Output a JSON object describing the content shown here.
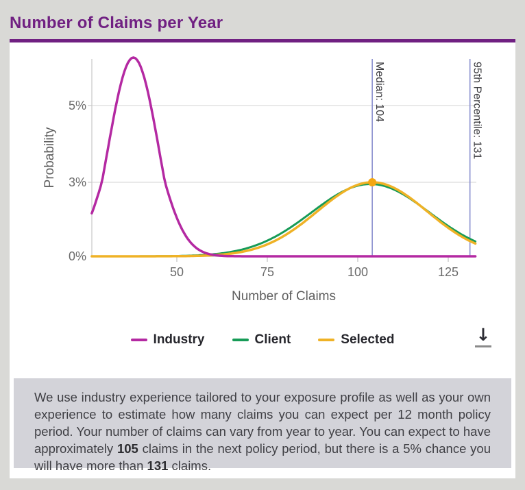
{
  "page": {
    "title": "Number of Claims per Year",
    "accent_color": "#702082"
  },
  "chart": {
    "y_axis": {
      "label": "Probability",
      "ticks": [
        "0%",
        "3%",
        "5%"
      ]
    },
    "x_axis": {
      "label": "Number of Claims",
      "ticks": [
        "50",
        "75",
        "100",
        "125"
      ]
    }
  },
  "chart_data": {
    "type": "line",
    "title": "Number of Claims per Year",
    "xlabel": "Number of Claims",
    "ylabel": "Probability",
    "x_ticks": [
      50,
      75,
      100,
      125
    ],
    "y_tick_labels": [
      "0%",
      "3%",
      "5%"
    ],
    "y_tick_pcts": [
      0,
      3,
      5
    ],
    "x_range": [
      26.5,
      132.9
    ],
    "grid": true,
    "legend_position": "bottom",
    "draw_order": [
      1,
      2,
      0
    ],
    "series": [
      {
        "name": "Industry",
        "color": "#b429a2",
        "shape": "gaussian",
        "mean": 38,
        "sd": 7.2,
        "peak_pct": 6.25,
        "key_points": [
          [
            27,
            1.8
          ],
          [
            38,
            6.25
          ],
          [
            47,
            2.9
          ],
          [
            57,
            0.2
          ],
          [
            65,
            0.0
          ],
          [
            133,
            0.0
          ]
        ]
      },
      {
        "name": "Client",
        "color": "#179b57",
        "shape": "gaussian",
        "mean": 103.5,
        "sd": 16.3,
        "peak_pct": 2.93,
        "key_points": [
          [
            62,
            0.1
          ],
          [
            75,
            0.6
          ],
          [
            103.5,
            2.93
          ],
          [
            125,
            1.2
          ],
          [
            131,
            0.65
          ]
        ]
      },
      {
        "name": "Selected",
        "color": "#efb226",
        "shape": "gaussian",
        "mean": 104,
        "sd": 15.2,
        "peak_pct": 3.0,
        "key_points": [
          [
            62,
            0.05
          ],
          [
            75,
            0.5
          ],
          [
            104,
            3.0
          ],
          [
            125,
            1.15
          ],
          [
            131,
            0.62
          ]
        ]
      }
    ],
    "markers": {
      "median": {
        "x": 104,
        "label": "Median: 104",
        "line_color": "#8a90cf"
      },
      "p95": {
        "x": 131,
        "label": "95th Percentile: 131",
        "line_color": "#8a90cf"
      },
      "median_point": {
        "x": 104,
        "y_pct": 3.0,
        "color": "#f3a712"
      }
    }
  },
  "legend": {
    "items": [
      {
        "label": "Industry",
        "color": "#b429a2"
      },
      {
        "label": "Client",
        "color": "#179b57"
      },
      {
        "label": "Selected",
        "color": "#efb226"
      }
    ]
  },
  "download": {
    "icon": "download-icon",
    "glyph": "↓"
  },
  "info": {
    "p1": "We use industry experience tailored to your exposure profile as well as your own experience to estimate how many claims you can expect per 12 month policy period. Your number of claims can vary from year to year. You can expect to have approximately ",
    "b1": "105",
    "p2": " claims in the next policy period, but there is a 5% chance you will have more than ",
    "b2": "131",
    "p3": " claims."
  }
}
